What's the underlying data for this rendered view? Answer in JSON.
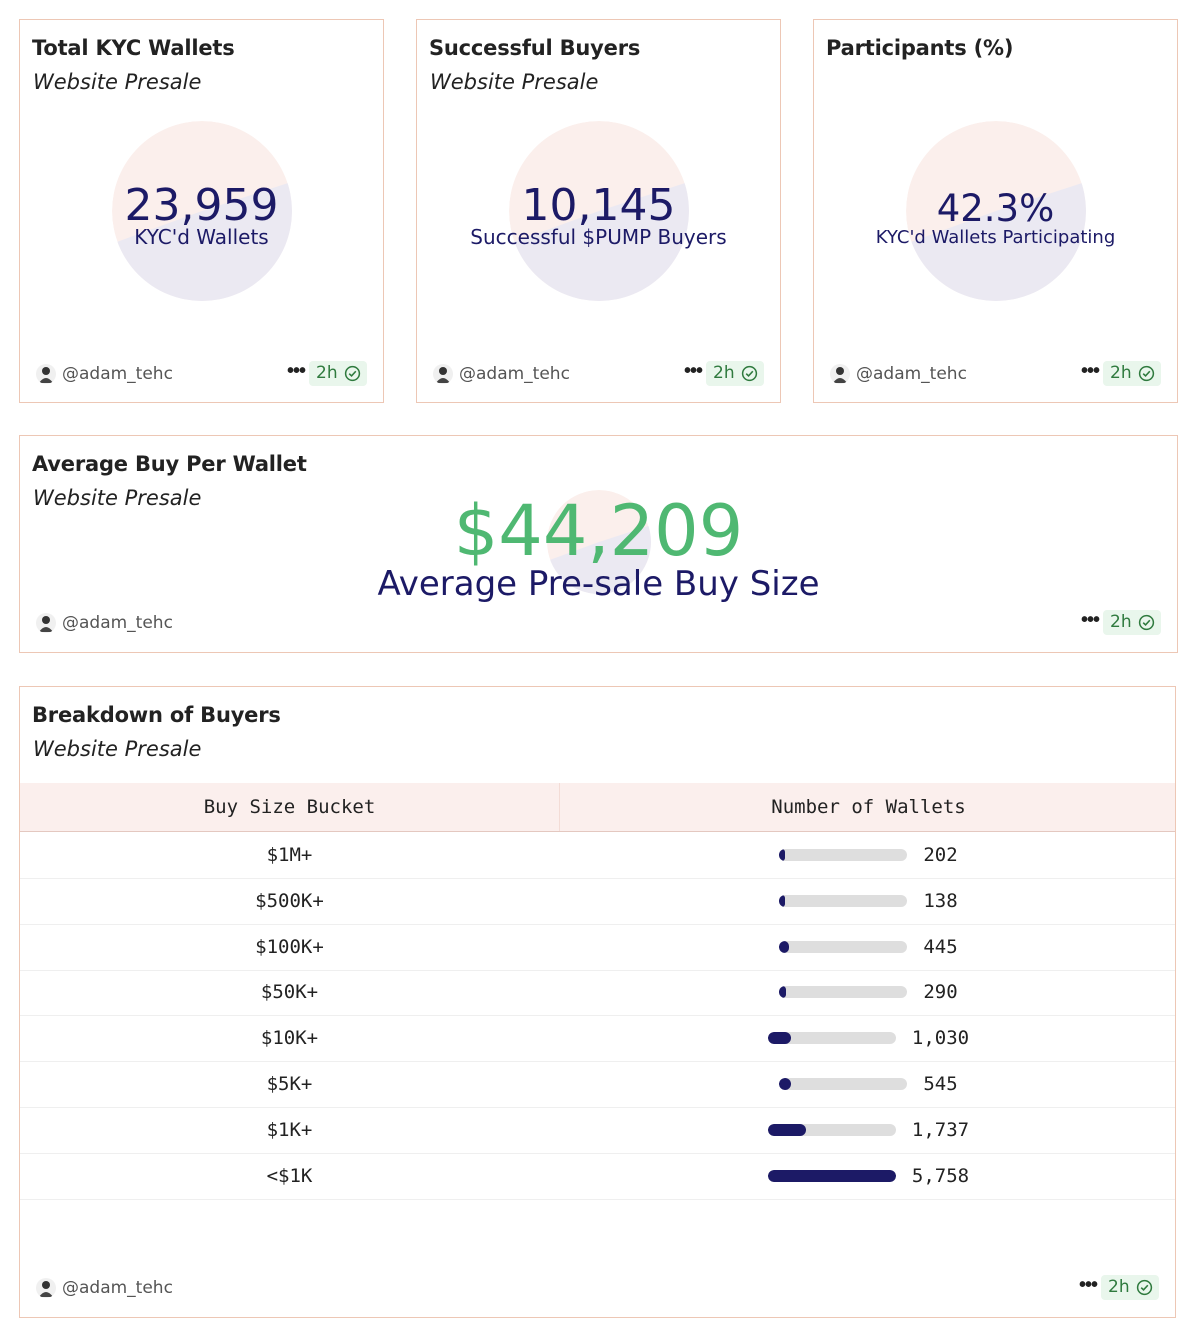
{
  "colors": {
    "accent": "#1c1a66",
    "green": "#4fb872",
    "border": "#edc7b5",
    "pie_light": "#fbefec",
    "pie_dark": "#ebe9f2"
  },
  "cards": [
    {
      "title": "Total KYC Wallets",
      "subtitle": "Website Presale",
      "value": "23,959",
      "label": "KYC'd Wallets",
      "user": "@adam_tehc",
      "age": "2h"
    },
    {
      "title": "Successful Buyers",
      "subtitle": "Website Presale",
      "value": "10,145",
      "label": "Successful $PUMP Buyers",
      "user": "@adam_tehc",
      "age": "2h"
    },
    {
      "title": "Participants (%)",
      "subtitle": "",
      "value": "42.3%",
      "label": "KYC'd Wallets Participating",
      "user": "@adam_tehc",
      "age": "2h"
    }
  ],
  "avg": {
    "title": "Average Buy Per Wallet",
    "subtitle": "Website Presale",
    "value": "$44,209",
    "label": "Average Pre-sale Buy Size",
    "user": "@adam_tehc",
    "age": "2h"
  },
  "breakdown": {
    "title": "Breakdown of Buyers",
    "subtitle": "Website Presale",
    "col_bucket": "Buy Size Bucket",
    "col_wallets": "Number of Wallets",
    "rows": [
      {
        "bucket": "$1M+",
        "count": "202",
        "value": 202
      },
      {
        "bucket": "$500K+",
        "count": "138",
        "value": 138
      },
      {
        "bucket": "$100K+",
        "count": "445",
        "value": 445
      },
      {
        "bucket": "$50K+",
        "count": "290",
        "value": 290
      },
      {
        "bucket": "$10K+",
        "count": "1,030",
        "value": 1030
      },
      {
        "bucket": "$5K+",
        "count": "545",
        "value": 545
      },
      {
        "bucket": "$1K+",
        "count": "1,737",
        "value": 1737
      },
      {
        "bucket": "<$1K",
        "count": "5,758",
        "value": 5758
      }
    ],
    "max_value": 5758,
    "user": "@adam_tehc",
    "age": "2h"
  },
  "icons": {
    "avatar": "user-avatar-icon",
    "more": "more-dots-icon",
    "verified": "check-badge-icon"
  }
}
